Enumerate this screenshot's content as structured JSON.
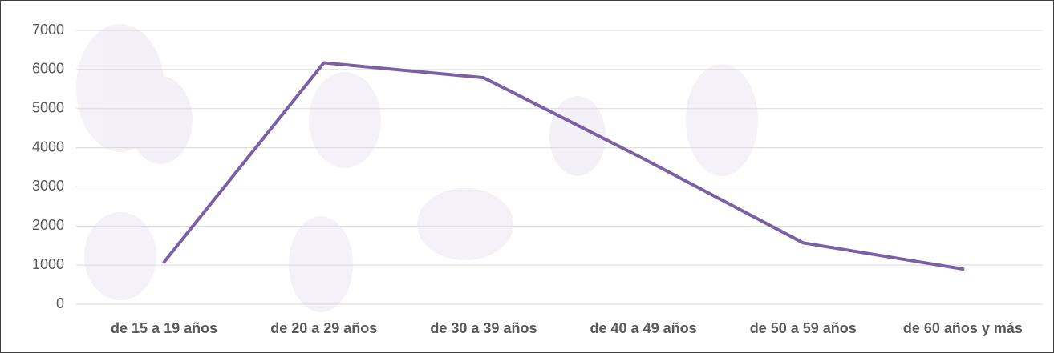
{
  "chart_data": {
    "type": "line",
    "categories": [
      "de 15 a 19 años",
      "de 20 a 29 años",
      "de 30 a 39 años",
      "de 40 a 49 años",
      "de 50 a 59 años",
      "de 60 años y más"
    ],
    "series": [
      {
        "color": "#7b60a3",
        "values": [
          1080,
          6170,
          5790,
          3720,
          1570,
          900
        ]
      }
    ],
    "ylim": [
      0,
      7000
    ],
    "yticks": [
      0,
      1000,
      2000,
      3000,
      4000,
      5000,
      6000,
      7000
    ],
    "grid": true
  }
}
